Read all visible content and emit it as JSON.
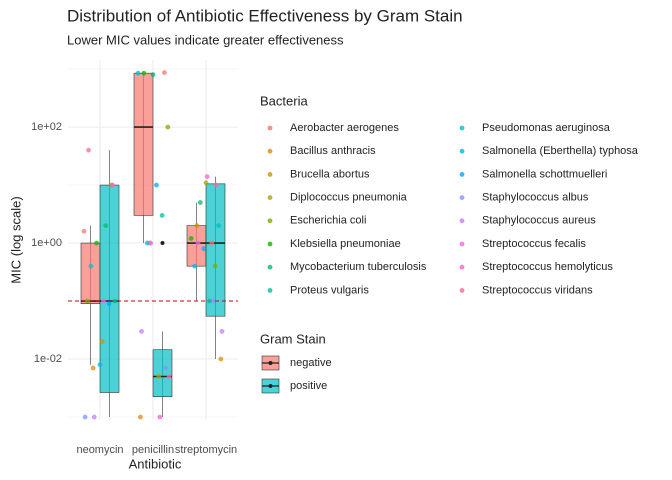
{
  "chart_data": {
    "type": "box",
    "title": "Distribution of Antibiotic Effectiveness by Gram Stain",
    "subtitle": "Lower MIC values indicate greater effectiveness",
    "x_label": "Antibiotic",
    "y_label": "MIC (log scale)",
    "yscale": "log",
    "grid": true,
    "ylim": [
      0.0009,
      1400
    ],
    "yticks": [
      {
        "value": 0.01,
        "label": "1e-02"
      },
      {
        "value": 1,
        "label": "1e+00"
      },
      {
        "value": 100,
        "label": "1e+02"
      }
    ],
    "minor_yticks": [
      0.001,
      0.1,
      10,
      1000
    ],
    "hline": {
      "value": 0.1,
      "color": "#cc0000"
    },
    "categories": [
      "neomycin",
      "penicillin",
      "streptomycin"
    ],
    "fill_legend_title": "Gram Stain",
    "series": [
      {
        "name": "negative",
        "color": "#F8766D",
        "boxes": [
          {
            "low": 0.008,
            "q1": 0.09,
            "median": 0.1,
            "q3": 1,
            "high": 2,
            "outliers": []
          },
          {
            "low": 1,
            "q1": 3,
            "median": 100,
            "q3": 850,
            "high": 870,
            "outliers": []
          },
          {
            "low": 0.1,
            "q1": 0.4,
            "median": 1,
            "q3": 2,
            "high": 5,
            "outliers": []
          }
        ]
      },
      {
        "name": "positive",
        "color": "#00BFC4",
        "boxes": [
          {
            "low": 0.001,
            "q1": 0.00265,
            "median": 0.1,
            "q3": 10,
            "high": 40,
            "outliers": []
          },
          {
            "low": 0.001,
            "q1": 0.00224,
            "median": 0.005,
            "q3": 0.0145,
            "high": 0.03,
            "outliers": [
              1
            ]
          },
          {
            "low": 0.01,
            "q1": 0.0548,
            "median": 1,
            "q3": 10.5,
            "high": 14,
            "outliers": []
          }
        ]
      }
    ],
    "color_legend_title": "Bacteria",
    "bacteria": [
      {
        "name": "Aerobacter aerogenes",
        "color": "#F8766D",
        "values": [
          1.6,
          870,
          1
        ]
      },
      {
        "name": "Bacillus anthracis",
        "color": "#E68613",
        "values": [
          0.007,
          0.001,
          0.01
        ]
      },
      {
        "name": "Brucella abortus",
        "color": "#CD9600",
        "values": [
          0.02,
          1,
          2
        ]
      },
      {
        "name": "Diplococcus pneumonia",
        "color": "#ABA300",
        "values": [
          10,
          0.005,
          11
        ]
      },
      {
        "name": "Escherichia coli",
        "color": "#7CAE00",
        "values": [
          0.1,
          100,
          0.4
        ]
      },
      {
        "name": "Klebsiella pneumoniae",
        "color": "#0CB702",
        "values": [
          1,
          850,
          1.2
        ]
      },
      {
        "name": "Mycobacterium tuberculosis",
        "color": "#00BE67",
        "values": [
          2,
          800,
          5
        ]
      },
      {
        "name": "Proteus vulgaris",
        "color": "#00C19A",
        "values": [
          0.1,
          3,
          0.1
        ]
      },
      {
        "name": "Pseudomonas aeruginosa",
        "color": "#00BFC4",
        "values": [
          0.4,
          850,
          2
        ]
      },
      {
        "name": "Salmonella (Eberthella) typhosa",
        "color": "#00B8E7",
        "values": [
          0.008,
          1,
          0.4
        ]
      },
      {
        "name": "Salmonella schottmuelleri",
        "color": "#00A9FF",
        "values": [
          0.09,
          10,
          0.8
        ]
      },
      {
        "name": "Staphylococcus albus",
        "color": "#8494FF",
        "values": [
          0.001,
          0.007,
          0.1
        ]
      },
      {
        "name": "Staphylococcus aureus",
        "color": "#C77CFF",
        "values": [
          0.001,
          0.03,
          0.03
        ]
      },
      {
        "name": "Streptococcus fecalis",
        "color": "#ED68ED",
        "values": [
          0.1,
          1,
          1
        ]
      },
      {
        "name": "Streptococcus hemolyticus",
        "color": "#FF61CC",
        "values": [
          10,
          0.001,
          14
        ]
      },
      {
        "name": "Streptococcus viridans",
        "color": "#FF68A1",
        "values": [
          40,
          0.005,
          10
        ]
      }
    ]
  }
}
